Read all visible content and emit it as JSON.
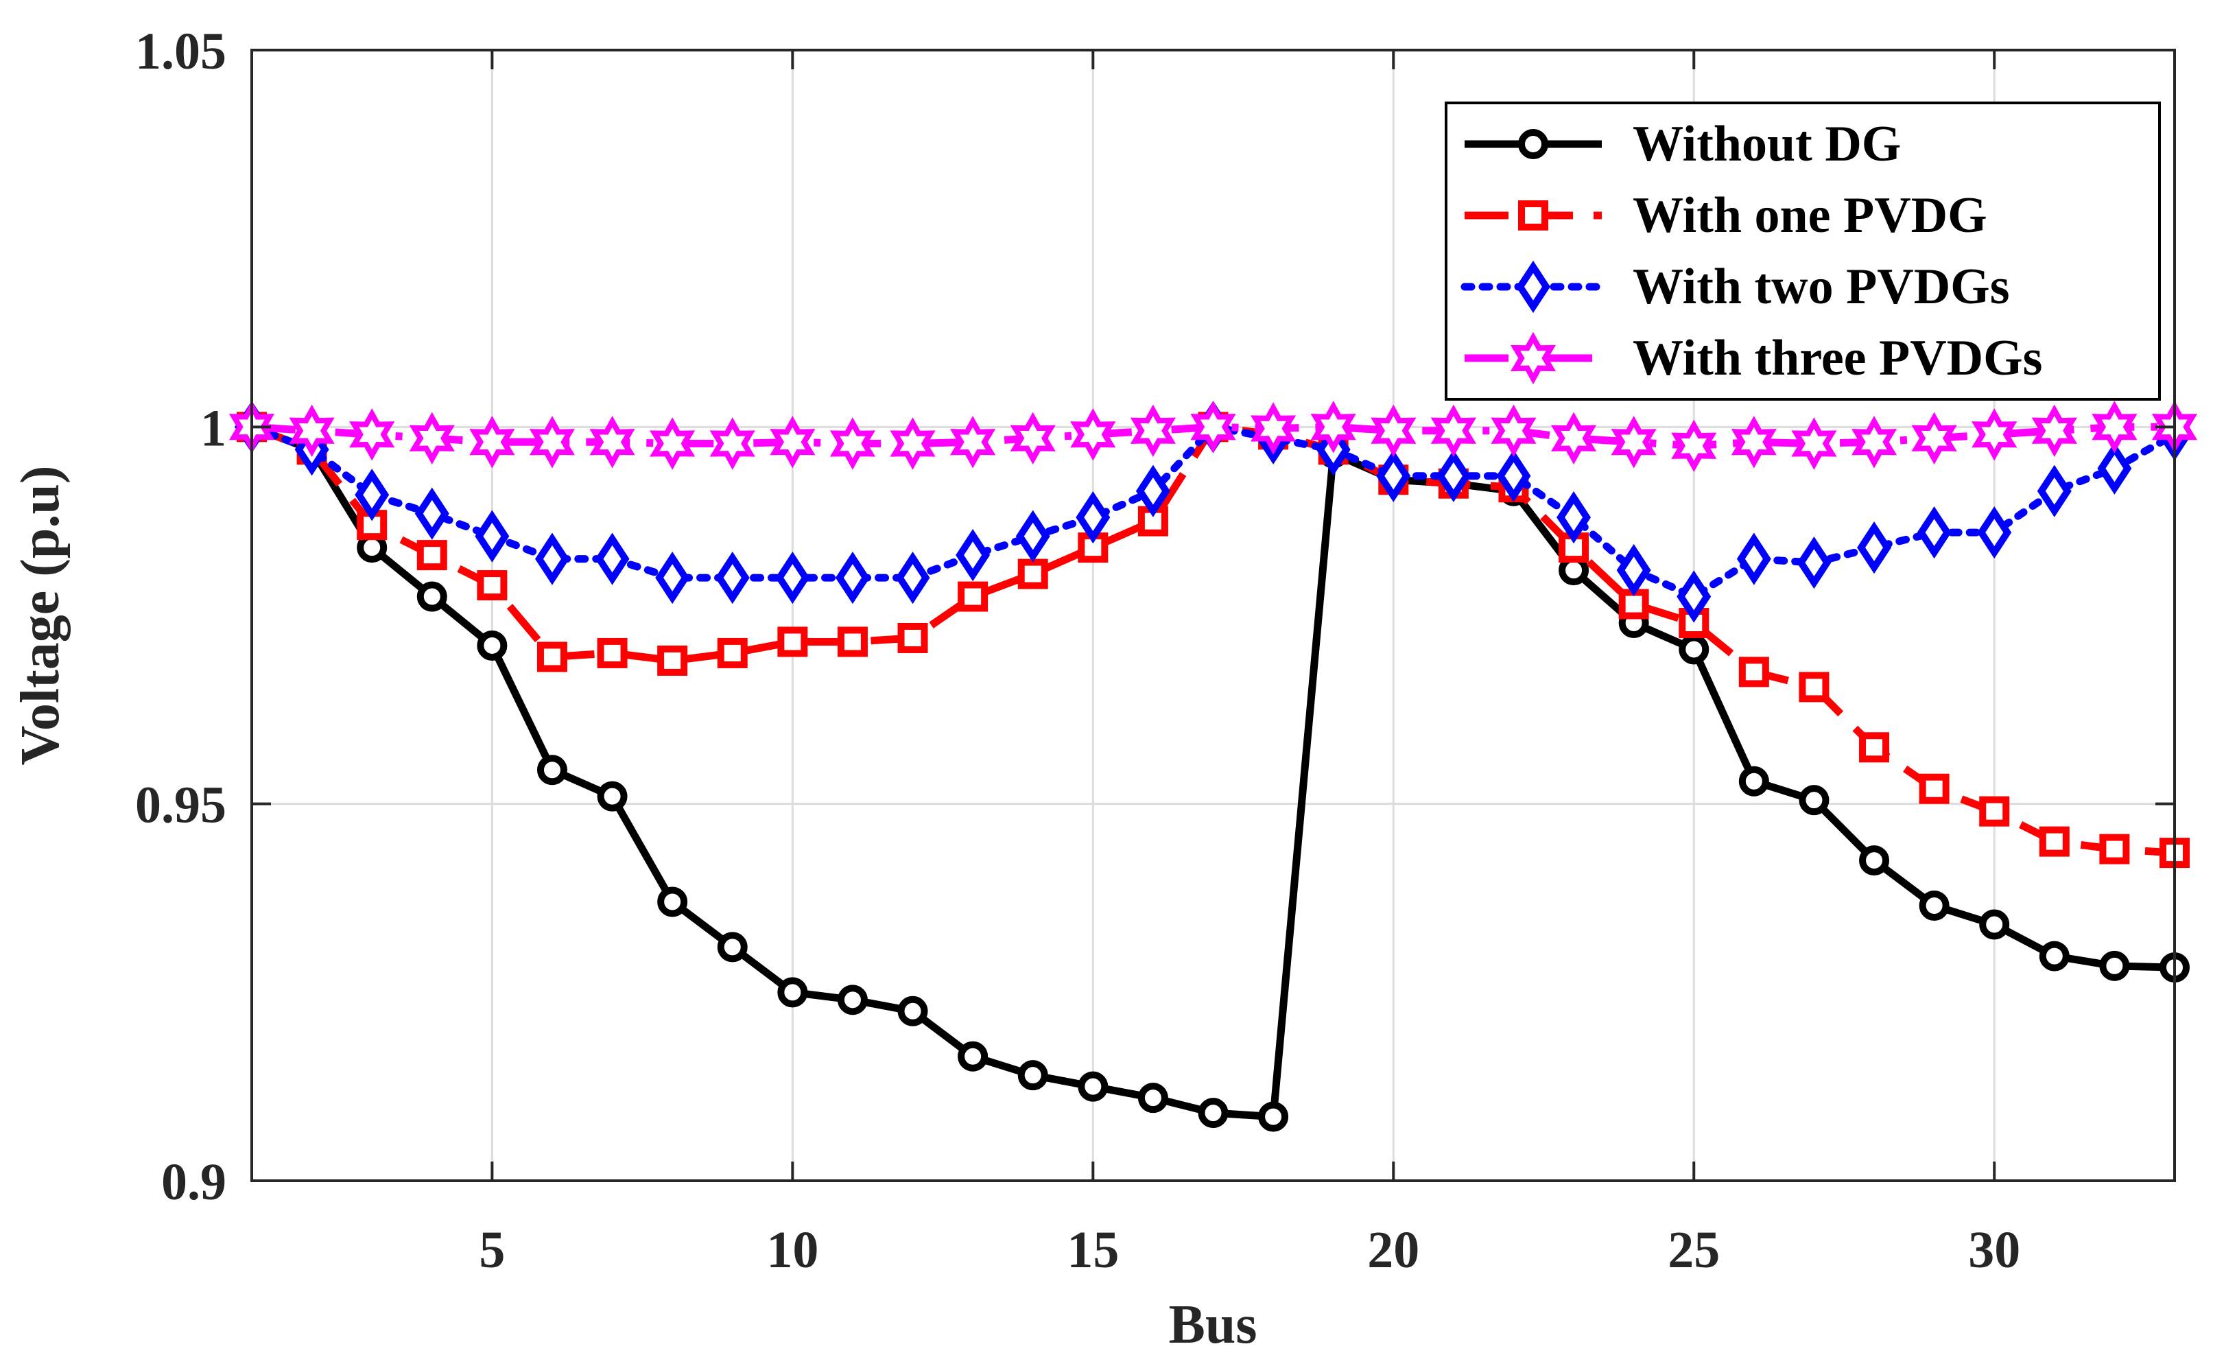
{
  "chart_data": {
    "type": "line",
    "xlabel": "Bus",
    "ylabel": "Voltage (p.u)",
    "xlim": [
      1,
      33
    ],
    "ylim": [
      0.9,
      1.05
    ],
    "xticks": [
      5,
      10,
      15,
      20,
      25,
      30
    ],
    "yticks": [
      0.9,
      0.95,
      1,
      1.05
    ],
    "xtick_labels": [
      "5",
      "10",
      "15",
      "20",
      "25",
      "30"
    ],
    "ytick_labels": [
      "0.9",
      "0.95",
      "1",
      "1.05"
    ],
    "grid": true,
    "legend_position": "top-right",
    "series": [
      {
        "name": "Without DG",
        "color": "#000000",
        "dash": "solid",
        "marker": "circle",
        "x": [
          1,
          2,
          3,
          4,
          5,
          6,
          7,
          8,
          9,
          10,
          11,
          12,
          13,
          14,
          15,
          16,
          17,
          18,
          19,
          20,
          21,
          22,
          23,
          24,
          25,
          26,
          27,
          28,
          29,
          30,
          31,
          32,
          33
        ],
        "values": [
          1.0,
          0.997,
          0.984,
          0.9775,
          0.971,
          0.9545,
          0.951,
          0.937,
          0.931,
          0.925,
          0.924,
          0.9225,
          0.9165,
          0.914,
          0.9125,
          0.911,
          0.909,
          0.9085,
          0.9965,
          0.993,
          0.9925,
          0.9915,
          0.981,
          0.974,
          0.9705,
          0.953,
          0.9505,
          0.9425,
          0.9365,
          0.934,
          0.9298,
          0.9285,
          0.9283
        ]
      },
      {
        "name": "With one PVDG",
        "color": "#ff0000",
        "dash": "dashed",
        "marker": "square",
        "x": [
          1,
          2,
          3,
          4,
          5,
          6,
          7,
          8,
          9,
          10,
          11,
          12,
          13,
          14,
          15,
          16,
          17,
          18,
          19,
          20,
          21,
          22,
          23,
          24,
          25,
          26,
          27,
          28,
          29,
          30,
          31,
          32,
          33
        ],
        "values": [
          1.0,
          0.997,
          0.987,
          0.983,
          0.979,
          0.9695,
          0.97,
          0.969,
          0.97,
          0.9715,
          0.9715,
          0.972,
          0.9775,
          0.9805,
          0.984,
          0.9875,
          1.0,
          0.999,
          0.997,
          0.993,
          0.9925,
          0.992,
          0.984,
          0.9765,
          0.974,
          0.9675,
          0.9655,
          0.9575,
          0.952,
          0.949,
          0.945,
          0.944,
          0.9435
        ]
      },
      {
        "name": "With two PVDGs",
        "color": "#0000ff",
        "dash": "dotted",
        "marker": "diamond",
        "x": [
          1,
          2,
          3,
          4,
          5,
          6,
          7,
          8,
          9,
          10,
          11,
          12,
          13,
          14,
          15,
          16,
          17,
          18,
          19,
          20,
          21,
          22,
          23,
          24,
          25,
          26,
          27,
          28,
          29,
          30,
          31,
          32,
          33
        ],
        "values": [
          1.0,
          0.997,
          0.991,
          0.9885,
          0.9855,
          0.9825,
          0.9825,
          0.98,
          0.98,
          0.98,
          0.98,
          0.98,
          0.983,
          0.9855,
          0.988,
          0.9915,
          1.0,
          0.9985,
          0.997,
          0.9935,
          0.9935,
          0.9935,
          0.988,
          0.981,
          0.9775,
          0.9825,
          0.982,
          0.984,
          0.986,
          0.986,
          0.9915,
          0.9945,
          0.999
        ]
      },
      {
        "name": "With three PVDGs",
        "color": "#ff00ff",
        "dash": "dashdot",
        "marker": "hexagram",
        "x": [
          1,
          2,
          3,
          4,
          5,
          6,
          7,
          8,
          9,
          10,
          11,
          12,
          13,
          14,
          15,
          16,
          17,
          18,
          19,
          20,
          21,
          22,
          23,
          24,
          25,
          26,
          27,
          28,
          29,
          30,
          31,
          32,
          33
        ],
        "values": [
          1.0,
          0.9995,
          0.999,
          0.9985,
          0.998,
          0.998,
          0.998,
          0.9978,
          0.9978,
          0.998,
          0.9978,
          0.9978,
          0.998,
          0.9985,
          0.999,
          0.9995,
          1.0,
          0.9998,
          1.0,
          0.9995,
          0.9995,
          0.9995,
          0.9985,
          0.998,
          0.9975,
          0.998,
          0.9978,
          0.998,
          0.9985,
          0.999,
          0.9995,
          1.0,
          1.0
        ]
      }
    ]
  }
}
